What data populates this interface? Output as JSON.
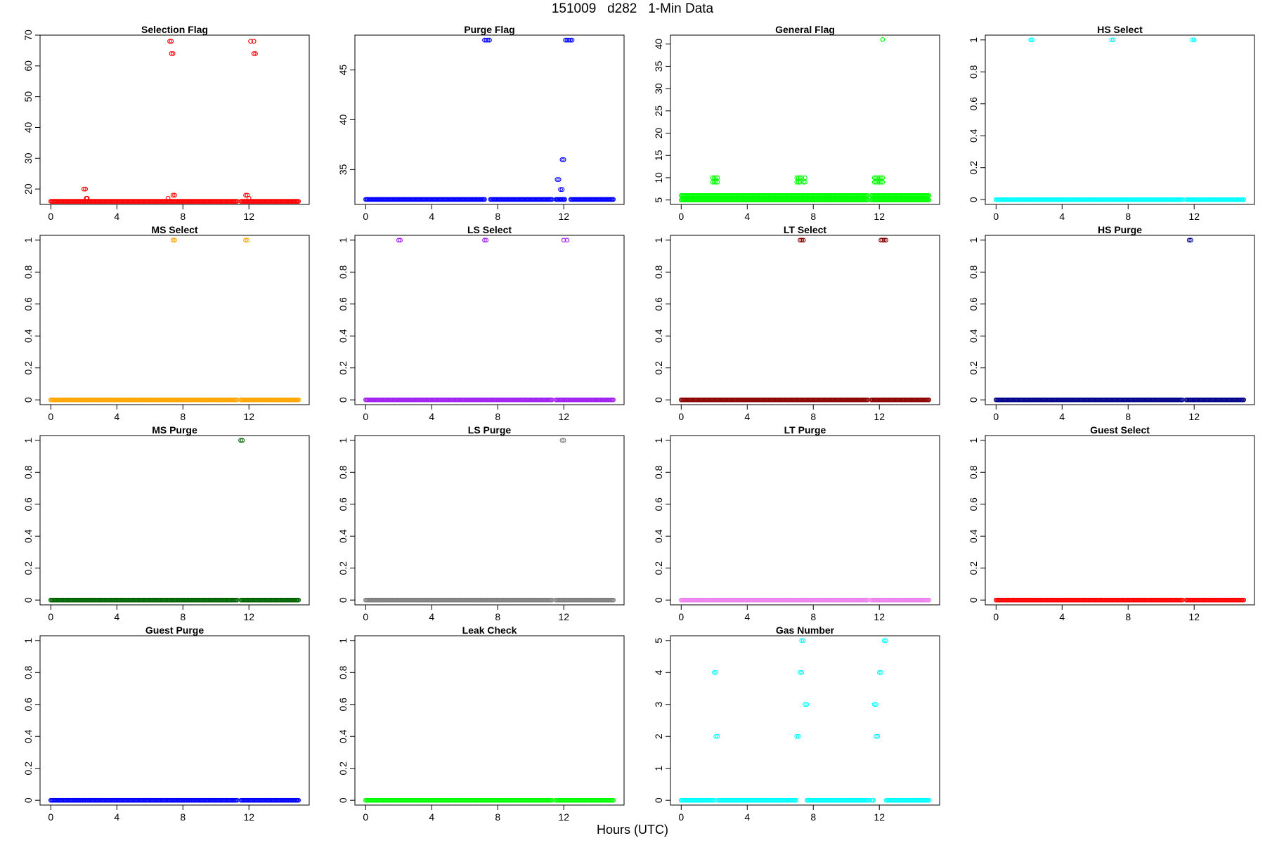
{
  "title": "151009   d282   1-Min Data",
  "xlabel": "Hours (UTC)",
  "chart_data": [
    {
      "type": "scatter",
      "title": "Selection Flag",
      "color": "#ff0000",
      "xlim": [
        0,
        15
      ],
      "ylim": [
        15,
        70
      ],
      "xticks": [
        0,
        4,
        8,
        12
      ],
      "yticks": [
        20,
        30,
        40,
        50,
        60,
        70
      ],
      "baseline": 16,
      "gaps": [
        [
          11.3,
          11.5
        ]
      ],
      "points": [
        [
          2.0,
          20
        ],
        [
          2.1,
          20
        ],
        [
          2.15,
          17
        ],
        [
          2.2,
          17
        ],
        [
          7.1,
          17
        ],
        [
          7.2,
          68
        ],
        [
          7.3,
          68
        ],
        [
          7.3,
          64
        ],
        [
          7.4,
          64
        ],
        [
          7.4,
          18
        ],
        [
          7.5,
          18
        ],
        [
          11.8,
          18
        ],
        [
          11.9,
          18
        ],
        [
          12.0,
          17
        ],
        [
          12.1,
          68
        ],
        [
          12.3,
          68
        ],
        [
          12.3,
          64
        ],
        [
          12.4,
          64
        ]
      ]
    },
    {
      "type": "scatter",
      "title": "Purge Flag",
      "color": "#0000ff",
      "xlim": [
        0,
        15
      ],
      "ylim": [
        31.5,
        48.5
      ],
      "xticks": [
        0,
        4,
        8,
        12
      ],
      "yticks": [
        35,
        40,
        45
      ],
      "baseline": 32,
      "gaps": [
        [
          7.2,
          7.5
        ],
        [
          11.3,
          11.5
        ],
        [
          12.1,
          12.4
        ]
      ],
      "points": [
        [
          7.2,
          48
        ],
        [
          7.3,
          48
        ],
        [
          7.4,
          48
        ],
        [
          7.5,
          48
        ],
        [
          11.6,
          34
        ],
        [
          11.7,
          34
        ],
        [
          11.6,
          32
        ],
        [
          11.8,
          32
        ],
        [
          11.8,
          33
        ],
        [
          11.9,
          33
        ],
        [
          11.9,
          36
        ],
        [
          12.0,
          36
        ],
        [
          12.0,
          32
        ],
        [
          12.1,
          48
        ],
        [
          12.2,
          48
        ],
        [
          12.3,
          48
        ],
        [
          12.4,
          48
        ],
        [
          12.5,
          48
        ]
      ]
    },
    {
      "type": "scatter",
      "title": "General Flag",
      "color": "#00ff00",
      "xlim": [
        0,
        15
      ],
      "ylim": [
        4,
        42
      ],
      "xticks": [
        0,
        4,
        8,
        12
      ],
      "yticks": [
        5,
        10,
        15,
        20,
        25,
        30,
        35,
        40
      ],
      "baseline": 6,
      "baseline2": 5,
      "gaps": [
        [
          11.3,
          11.5
        ]
      ],
      "points": [
        [
          1.9,
          10
        ],
        [
          2.0,
          10
        ],
        [
          2.1,
          10
        ],
        [
          2.2,
          10
        ],
        [
          1.9,
          9
        ],
        [
          2.0,
          9
        ],
        [
          2.1,
          9
        ],
        [
          2.2,
          9
        ],
        [
          7.0,
          10
        ],
        [
          7.1,
          10
        ],
        [
          7.2,
          10
        ],
        [
          7.3,
          10
        ],
        [
          7.5,
          10
        ],
        [
          7.0,
          9
        ],
        [
          7.1,
          9
        ],
        [
          7.2,
          9
        ],
        [
          7.4,
          9
        ],
        [
          7.5,
          9
        ],
        [
          11.7,
          10
        ],
        [
          11.8,
          10
        ],
        [
          11.9,
          10
        ],
        [
          12.0,
          10
        ],
        [
          12.1,
          10
        ],
        [
          12.2,
          10
        ],
        [
          11.7,
          9
        ],
        [
          11.8,
          9
        ],
        [
          11.9,
          9
        ],
        [
          12.0,
          9
        ],
        [
          12.1,
          9
        ],
        [
          12.2,
          9
        ],
        [
          12.2,
          41
        ]
      ]
    },
    {
      "type": "scatter",
      "title": "HS Select",
      "color": "#00ffff",
      "xlim": [
        0,
        15
      ],
      "ylim": [
        -0.03,
        1.03
      ],
      "xticks": [
        0,
        4,
        8,
        12
      ],
      "yticks": [
        0,
        0.2,
        0.4,
        0.6,
        0.8,
        1
      ],
      "baseline": 0,
      "gaps": [
        [
          11.3,
          11.5
        ]
      ],
      "points": [
        [
          2.1,
          1
        ],
        [
          2.2,
          1
        ],
        [
          7.0,
          1
        ],
        [
          7.1,
          1
        ],
        [
          11.9,
          1
        ],
        [
          12.0,
          1
        ]
      ]
    },
    {
      "type": "scatter",
      "title": "MS Select",
      "color": "#ffa500",
      "xlim": [
        0,
        15
      ],
      "ylim": [
        -0.03,
        1.03
      ],
      "xticks": [
        0,
        4,
        8,
        12
      ],
      "yticks": [
        0,
        0.2,
        0.4,
        0.6,
        0.8,
        1
      ],
      "baseline": 0,
      "gaps": [
        [
          11.3,
          11.5
        ]
      ],
      "points": [
        [
          7.4,
          1
        ],
        [
          7.5,
          1
        ],
        [
          11.8,
          1
        ],
        [
          11.9,
          1
        ]
      ]
    },
    {
      "type": "scatter",
      "title": "LS Select",
      "color": "#a020f0",
      "xlim": [
        0,
        15
      ],
      "ylim": [
        -0.03,
        1.03
      ],
      "xticks": [
        0,
        4,
        8,
        12
      ],
      "yticks": [
        0,
        0.2,
        0.4,
        0.6,
        0.8,
        1
      ],
      "baseline": 0,
      "gaps": [
        [
          11.3,
          11.5
        ]
      ],
      "points": [
        [
          2.0,
          1
        ],
        [
          2.1,
          1
        ],
        [
          7.2,
          1
        ],
        [
          7.3,
          1
        ],
        [
          12.0,
          1
        ],
        [
          12.2,
          1
        ]
      ]
    },
    {
      "type": "scatter",
      "title": "LT Select",
      "color": "#8b0000",
      "xlim": [
        0,
        15
      ],
      "ylim": [
        -0.03,
        1.03
      ],
      "xticks": [
        0,
        4,
        8,
        12
      ],
      "yticks": [
        0,
        0.2,
        0.4,
        0.6,
        0.8,
        1
      ],
      "baseline": 0,
      "gaps": [
        [
          11.3,
          11.5
        ]
      ],
      "points": [
        [
          7.2,
          1
        ],
        [
          7.3,
          1
        ],
        [
          7.4,
          1
        ],
        [
          12.1,
          1
        ],
        [
          12.2,
          1
        ],
        [
          12.3,
          1
        ],
        [
          12.4,
          1
        ]
      ]
    },
    {
      "type": "scatter",
      "title": "HS Purge",
      "color": "#00008b",
      "xlim": [
        0,
        15
      ],
      "ylim": [
        -0.03,
        1.03
      ],
      "xticks": [
        0,
        4,
        8,
        12
      ],
      "yticks": [
        0,
        0.2,
        0.4,
        0.6,
        0.8,
        1
      ],
      "baseline": 0,
      "gaps": [
        [
          11.3,
          11.5
        ]
      ],
      "points": [
        [
          11.7,
          1
        ],
        [
          11.8,
          1
        ]
      ]
    },
    {
      "type": "scatter",
      "title": "MS Purge",
      "color": "#006400",
      "xlim": [
        0,
        15
      ],
      "ylim": [
        -0.03,
        1.03
      ],
      "xticks": [
        0,
        4,
        8,
        12
      ],
      "yticks": [
        0,
        0.2,
        0.4,
        0.6,
        0.8,
        1
      ],
      "baseline": 0,
      "gaps": [
        [
          11.3,
          11.5
        ]
      ],
      "points": [
        [
          11.5,
          1
        ],
        [
          11.6,
          1
        ]
      ]
    },
    {
      "type": "scatter",
      "title": "LS Purge",
      "color": "#808080",
      "xlim": [
        0,
        15
      ],
      "ylim": [
        -0.03,
        1.03
      ],
      "xticks": [
        0,
        4,
        8,
        12
      ],
      "yticks": [
        0,
        0.2,
        0.4,
        0.6,
        0.8,
        1
      ],
      "baseline": 0,
      "gaps": [
        [
          11.3,
          11.5
        ]
      ],
      "points": [
        [
          11.9,
          1
        ],
        [
          12.0,
          1
        ]
      ]
    },
    {
      "type": "scatter",
      "title": "LT Purge",
      "color": "#ee82ee",
      "xlim": [
        0,
        15
      ],
      "ylim": [
        -0.03,
        1.03
      ],
      "xticks": [
        0,
        4,
        8,
        12
      ],
      "yticks": [
        0,
        0.2,
        0.4,
        0.6,
        0.8,
        1
      ],
      "baseline": 0,
      "gaps": [
        [
          11.3,
          11.5
        ]
      ],
      "points": []
    },
    {
      "type": "scatter",
      "title": "Guest Select",
      "color": "#ff0000",
      "xlim": [
        0,
        15
      ],
      "ylim": [
        -0.03,
        1.03
      ],
      "xticks": [
        0,
        4,
        8,
        12
      ],
      "yticks": [
        0,
        0.2,
        0.4,
        0.6,
        0.8,
        1
      ],
      "baseline": 0,
      "gaps": [
        [
          11.3,
          11.5
        ]
      ],
      "points": []
    },
    {
      "type": "scatter",
      "title": "Guest Purge",
      "color": "#0000ff",
      "xlim": [
        0,
        15
      ],
      "ylim": [
        -0.03,
        1.03
      ],
      "xticks": [
        0,
        4,
        8,
        12
      ],
      "yticks": [
        0,
        0.2,
        0.4,
        0.6,
        0.8,
        1
      ],
      "baseline": 0,
      "gaps": [
        [
          11.3,
          11.5
        ]
      ],
      "points": []
    },
    {
      "type": "scatter",
      "title": "Leak Check",
      "color": "#00ff00",
      "xlim": [
        0,
        15
      ],
      "ylim": [
        -0.03,
        1.03
      ],
      "xticks": [
        0,
        4,
        8,
        12
      ],
      "yticks": [
        0,
        0.2,
        0.4,
        0.6,
        0.8,
        1
      ],
      "baseline": 0,
      "gaps": [
        [
          11.3,
          11.5
        ]
      ],
      "points": []
    },
    {
      "type": "scatter",
      "title": "Gas Number",
      "color": "#00ffff",
      "xlim": [
        0,
        15
      ],
      "ylim": [
        -0.15,
        5.15
      ],
      "xticks": [
        0,
        4,
        8,
        12
      ],
      "yticks": [
        0,
        1,
        2,
        3,
        4,
        5
      ],
      "baseline": 0,
      "gaps": [
        [
          2.0,
          2.2
        ],
        [
          7.0,
          7.6
        ],
        [
          11.4,
          11.5
        ],
        [
          11.7,
          12.4
        ]
      ],
      "points": [
        [
          2.0,
          4
        ],
        [
          2.1,
          4
        ],
        [
          2.1,
          2
        ],
        [
          2.2,
          2
        ],
        [
          7.0,
          2
        ],
        [
          7.1,
          2
        ],
        [
          7.2,
          4
        ],
        [
          7.3,
          4
        ],
        [
          7.3,
          5
        ],
        [
          7.4,
          5
        ],
        [
          7.5,
          3
        ],
        [
          7.6,
          3
        ],
        [
          11.7,
          3
        ],
        [
          11.8,
          3
        ],
        [
          11.8,
          2
        ],
        [
          11.9,
          2
        ],
        [
          12.0,
          4
        ],
        [
          12.1,
          4
        ],
        [
          12.3,
          5
        ],
        [
          12.4,
          5
        ]
      ]
    }
  ]
}
